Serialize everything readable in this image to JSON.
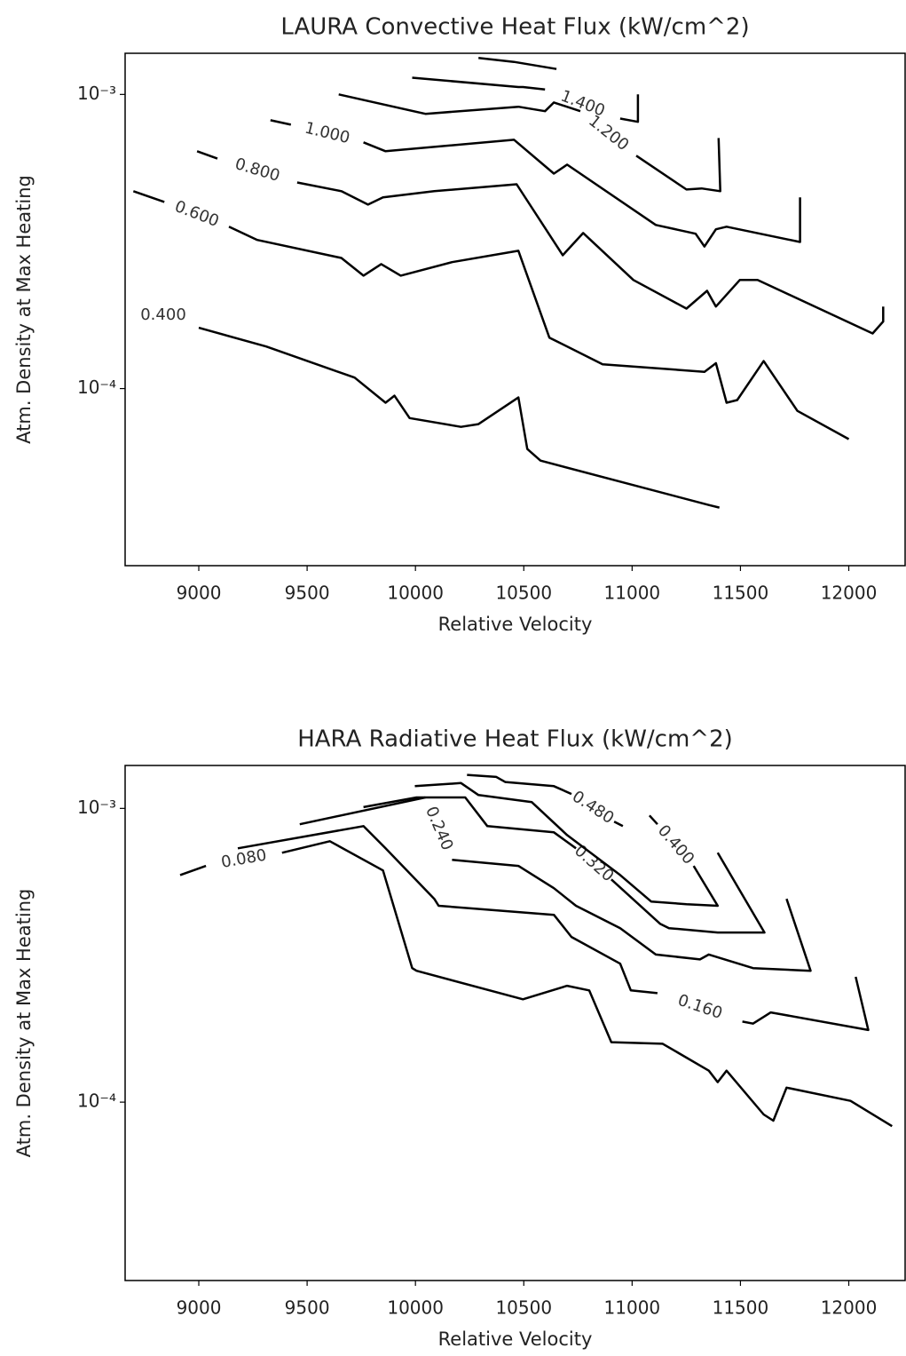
{
  "chart_data": [
    {
      "type": "contour",
      "title": "LAURA Convective Heat Flux (kW/cm^2)",
      "x_label": "Relative Velocity",
      "y_label": "Atm. Density at Max Heating",
      "xlim": [
        8660,
        12260
      ],
      "ylim": [
        2.5e-05,
        0.00138
      ],
      "y_scale": "log",
      "color": "#000000",
      "xticks": [
        9000,
        9500,
        10000,
        10500,
        11000,
        11500,
        12000
      ],
      "yticks": [
        {
          "value": 0.0001,
          "label": "10⁻⁴"
        },
        {
          "value": 0.001,
          "label": "10⁻³"
        }
      ],
      "series": [
        {
          "name": "0.400",
          "x": [
            9000,
            9311,
            9719,
            9862,
            9903,
            9973,
            10210,
            10291,
            10475,
            10516,
            10577,
            11354,
            11403
          ],
          "y": [
            0.000161,
            0.000139,
            0.000109,
            8.95e-05,
            9.46e-05,
            7.94e-05,
            7.41e-05,
            7.57e-05,
            9.33e-05,
            6.23e-05,
            5.69e-05,
            4.02e-05,
            3.94e-05
          ]
        },
        {
          "name": "0.600",
          "x": [
            8698,
            8841,
            null,
            9139,
            9270,
            9658,
            9760,
            9842,
            9932,
            10169,
            10475,
            10618,
            10864,
            11334,
            11387,
            11436,
            11485,
            11607,
            11763,
            12000
          ],
          "y": [
            0.000469,
            0.000431,
            null,
            0.000355,
            0.00032,
            0.000278,
            0.000242,
            0.000265,
            0.000242,
            0.000269,
            0.000294,
            0.000149,
            0.000121,
            0.000114,
            0.000122,
            8.95e-05,
            9.14e-05,
            0.000124,
            8.4e-05,
            6.73e-05
          ]
        },
        {
          "name": "0.800",
          "x": [
            8992,
            9086,
            null,
            9454,
            9658,
            9781,
            9850,
            10087,
            10467,
            10680,
            10774,
            11006,
            11251,
            11346,
            11387,
            11497,
            11579,
            12110,
            12159,
            12159
          ],
          "y": [
            0.000641,
            0.000605,
            null,
            0.000502,
            0.000469,
            0.000422,
            0.000447,
            0.000469,
            0.000495,
            0.000284,
            0.000338,
            0.000234,
            0.000187,
            0.000215,
            0.00019,
            0.000234,
            0.000234,
            0.000154,
            0.000169,
            0.00019
          ]
        },
        {
          "name": "1.000",
          "x": [
            9331,
            9425,
            null,
            9760,
            9862,
            10455,
            10639,
            10700,
            11109,
            11293,
            11334,
            11387,
            11436,
            11775,
            11775
          ],
          "y": [
            0.000817,
            0.000789,
            null,
            0.000687,
            0.000641,
            0.000701,
            0.000538,
            0.000577,
            0.00036,
            0.000336,
            0.000304,
            0.000348,
            0.000355,
            0.000315,
            0.000447
          ]
        },
        {
          "name": "1.200",
          "x": [
            9646,
            10046,
            10475,
            10598,
            10639,
            10761,
            null,
            11019,
            11251,
            11321,
            11407,
            11399
          ],
          "y": [
            0.001,
            0.000859,
            0.000908,
            0.000877,
            0.000939,
            0.000877,
            null,
            0.000619,
            0.000475,
            0.000479,
            0.000469,
            0.000711
          ]
        },
        {
          "name": "1.400",
          "x": [
            9985,
            10475,
            10496,
            10598,
            null,
            10945,
            11027,
            11027
          ],
          "y": [
            0.00114,
            0.00106,
            0.00106,
            0.00104,
            null,
            0.000828,
            0.000807,
            0.001
          ]
        },
        {
          "name": null,
          "x": [
            10291,
            10455,
            10651
          ],
          "y": [
            0.00133,
            0.00129,
            0.00122
          ]
        }
      ]
    },
    {
      "type": "contour",
      "title": "HARA Radiative Heat Flux (kW/cm^2)",
      "x_label": "Relative Velocity",
      "y_label": "Atm. Density at Max Heating",
      "xlim": [
        8660,
        12260
      ],
      "ylim": [
        2.47e-05,
        0.0014
      ],
      "y_scale": "log",
      "color": "#000000",
      "xticks": [
        9000,
        9500,
        10000,
        10500,
        11000,
        11500,
        12000
      ],
      "yticks": [
        {
          "value": 0.0001,
          "label": "10⁻⁴"
        },
        {
          "value": 0.001,
          "label": "10⁻³"
        }
      ],
      "series": [
        {
          "name": "0.080",
          "x": [
            8914,
            9033,
            null,
            9384,
            9605,
            9850,
            9985,
            10005,
            10496,
            10700,
            10802,
            10904,
            11141,
            11354,
            11395,
            11436,
            11607,
            11652,
            11713,
            12008,
            12200
          ],
          "y": [
            0.000593,
            0.000637,
            null,
            0.000706,
            0.000773,
            0.000615,
            0.000286,
            0.00028,
            0.000224,
            0.000249,
            0.00024,
            0.00016,
            0.000158,
            0.000128,
            0.000117,
            0.000128,
            9.08e-05,
            8.65e-05,
            0.000112,
            0.000101,
            8.28e-05
          ]
        },
        {
          "name": "0.160",
          "x": [
            9180,
            9760,
            9862,
            10087,
            10107,
            10639,
            10720,
            10945,
            10994,
            11117,
            null,
            11509,
            11558,
            11640,
            12090,
            12032
          ],
          "y": [
            0.000731,
            0.00087,
            0.000731,
            0.000492,
            0.000466,
            0.000434,
            0.000365,
            0.000296,
            0.00024,
            0.000235,
            null,
            0.000188,
            0.000185,
            0.000202,
            0.000176,
            0.000267
          ]
        },
        {
          "name": "0.240",
          "x": [
            9466,
            10046,
            null,
            10169,
            10475,
            10639,
            10741,
            10945,
            11109,
            11313,
            11354,
            11558,
            11824,
            11713
          ],
          "y": [
            0.000883,
            0.00109,
            null,
            0.000668,
            0.000637,
            0.000535,
            0.000466,
            0.000391,
            0.000318,
            0.000306,
            0.000318,
            0.000286,
            0.00028,
            0.000492
          ]
        },
        {
          "name": "0.320",
          "x": [
            9760,
            10005,
            10230,
            10332,
            10639,
            10741,
            null,
            10904,
            11129,
            11170,
            11395,
            11611,
            11395
          ],
          "y": [
            0.00101,
            0.00109,
            0.00109,
            0.00087,
            0.000829,
            0.000731,
            null,
            0.000573,
            0.000405,
            0.000391,
            0.000378,
            0.000378,
            0.000706
          ]
        },
        {
          "name": "0.400",
          "x": [
            9997,
            10210,
            10291,
            10537,
            10700,
            10945,
            11088,
            11251,
            11395,
            11284,
            null,
            11117,
            11080
          ],
          "y": [
            0.00119,
            0.00122,
            0.00111,
            0.00105,
            0.000811,
            0.000593,
            0.000482,
            0.000472,
            0.000466,
            0.000637,
            null,
            0.000883,
            0.000946
          ]
        },
        {
          "name": "0.480",
          "x": [
            10238,
            10373,
            10414,
            10639,
            10720,
            null,
            10917,
            10957
          ],
          "y": [
            0.0013,
            0.00128,
            0.00123,
            0.00119,
            0.00112,
            null,
            0.000901,
            0.00087
          ]
        }
      ]
    }
  ]
}
